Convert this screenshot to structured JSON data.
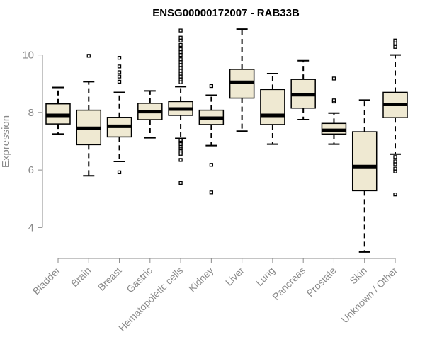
{
  "chart_data": {
    "type": "box",
    "title": "ENSG00000172007 - RAB33B",
    "xlabel": "",
    "ylabel": "Expression",
    "ylim": [
      3.0,
      11.0
    ],
    "yticks": [
      4,
      6,
      8,
      10
    ],
    "grid": false,
    "box_fill": "#efe9d2",
    "line_color": "#000000",
    "axis_color": "#8a8a8a",
    "categories": [
      "Bladder",
      "Brain",
      "Breast",
      "Gastric",
      "Hematopoietic cells",
      "Kidney",
      "Liver",
      "Lung",
      "Pancreas",
      "Prostate",
      "Skin",
      "Unknown / Other"
    ],
    "boxes": [
      {
        "category": "Bladder",
        "whisker_low": 7.25,
        "q1": 7.6,
        "median": 7.9,
        "q3": 8.3,
        "whisker_high": 8.87,
        "outliers": []
      },
      {
        "category": "Brain",
        "whisker_low": 5.8,
        "q1": 6.88,
        "median": 7.45,
        "q3": 8.08,
        "whisker_high": 9.07,
        "outliers": [
          9.97
        ]
      },
      {
        "category": "Breast",
        "whisker_low": 6.3,
        "q1": 7.15,
        "median": 7.52,
        "q3": 7.83,
        "whisker_high": 8.7,
        "outliers": [
          5.92,
          9.07,
          9.25,
          9.4,
          9.6,
          9.9
        ]
      },
      {
        "category": "Gastric",
        "whisker_low": 7.12,
        "q1": 7.75,
        "median": 8.03,
        "q3": 8.32,
        "whisker_high": 8.75,
        "outliers": []
      },
      {
        "category": "Hematopoietic cells",
        "whisker_low": 7.1,
        "q1": 7.9,
        "median": 8.12,
        "q3": 8.38,
        "whisker_high": 8.9,
        "outliers": [
          5.55,
          6.35,
          6.55,
          6.6,
          6.68,
          6.75,
          6.82,
          6.9,
          6.95,
          7.0,
          7.05,
          9.05,
          9.15,
          9.25,
          9.35,
          9.45,
          9.55,
          9.65,
          9.75,
          9.85,
          10.0,
          10.1,
          10.2,
          10.35,
          10.5,
          10.6,
          10.85
        ]
      },
      {
        "category": "Kidney",
        "whisker_low": 6.85,
        "q1": 7.58,
        "median": 7.8,
        "q3": 8.08,
        "whisker_high": 8.6,
        "outliers": [
          5.22,
          6.18,
          8.92
        ]
      },
      {
        "category": "Liver",
        "whisker_low": 7.35,
        "q1": 8.5,
        "median": 9.05,
        "q3": 9.5,
        "whisker_high": 10.9,
        "outliers": []
      },
      {
        "category": "Lung",
        "whisker_low": 6.9,
        "q1": 7.58,
        "median": 7.9,
        "q3": 8.8,
        "whisker_high": 9.35,
        "outliers": []
      },
      {
        "category": "Pancreas",
        "whisker_low": 7.75,
        "q1": 8.15,
        "median": 8.62,
        "q3": 9.15,
        "whisker_high": 9.8,
        "outliers": []
      },
      {
        "category": "Prostate",
        "whisker_low": 6.9,
        "q1": 7.25,
        "median": 7.38,
        "q3": 7.62,
        "whisker_high": 7.98,
        "outliers": [
          8.38,
          8.42,
          9.18
        ]
      },
      {
        "category": "Skin",
        "whisker_low": 3.15,
        "q1": 5.28,
        "median": 6.12,
        "q3": 7.33,
        "whisker_high": 8.43,
        "outliers": []
      },
      {
        "category": "Unknown / Other",
        "whisker_low": 6.55,
        "q1": 7.82,
        "median": 8.28,
        "q3": 8.7,
        "whisker_high": 10.0,
        "outliers": [
          5.15,
          5.95,
          6.05,
          6.2,
          6.3,
          6.45,
          10.28,
          10.4,
          10.5
        ]
      }
    ]
  }
}
